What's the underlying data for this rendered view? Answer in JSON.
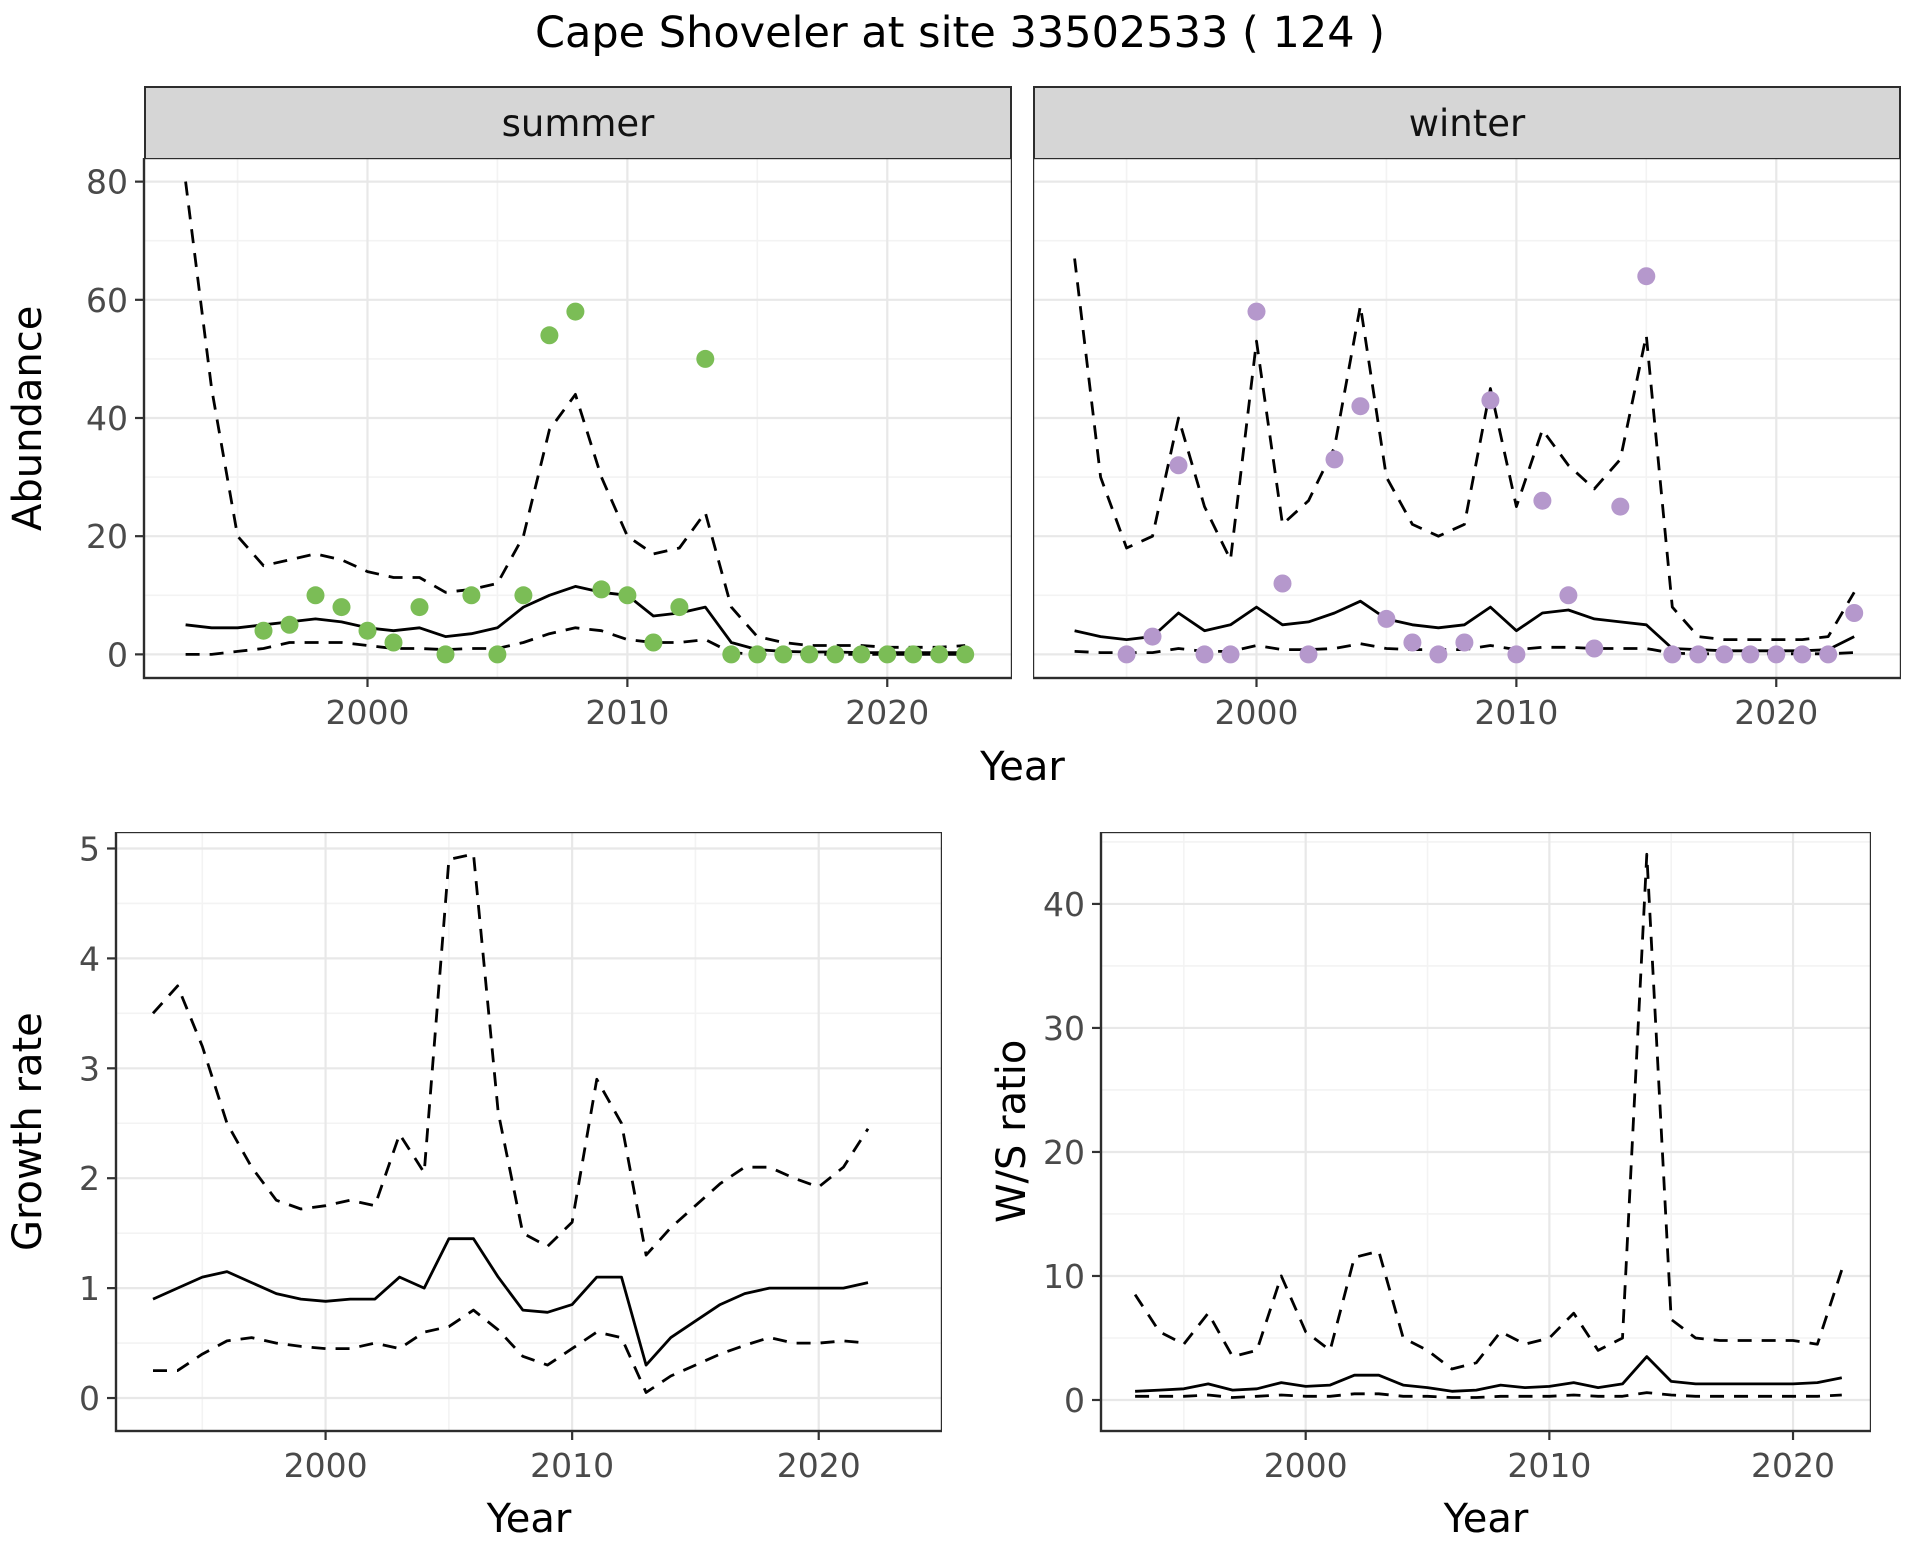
{
  "title": "Cape Shoveler at site 33502533 ( 124 )",
  "colors": {
    "summer_point": "#7bbd56",
    "winter_point": "#b598cc",
    "line": "#000000",
    "strip_bg": "#d6d6d6",
    "panel_border": "#2d2d2d",
    "grid_major": "#e8e8e8",
    "grid_minor": "#f3f3f3",
    "tick_text": "#4a4a4a"
  },
  "chart_data": [
    {
      "id": "abundance_summer",
      "type": "line",
      "facet_label": "summer",
      "xlabel": "Year",
      "ylabel": "Abundance",
      "xlim": [
        1991.4,
        2024.8
      ],
      "ylim": [
        -4,
        84
      ],
      "xticks": [
        2000,
        2010,
        2020
      ],
      "yticks": [
        0,
        20,
        40,
        60,
        80
      ],
      "grid": true,
      "x": [
        1993,
        1994,
        1995,
        1996,
        1997,
        1998,
        1999,
        2000,
        2001,
        2002,
        2003,
        2004,
        2005,
        2006,
        2007,
        2008,
        2009,
        2010,
        2011,
        2012,
        2013,
        2014,
        2015,
        2016,
        2017,
        2018,
        2019,
        2020,
        2021,
        2022,
        2023
      ],
      "series": [
        {
          "name": "fit",
          "style": "solid",
          "y": [
            5,
            4.5,
            4.5,
            5,
            5.5,
            6,
            5.5,
            4.5,
            4,
            4.5,
            3,
            3.5,
            4.5,
            8,
            10,
            11.5,
            10.5,
            10,
            6.5,
            7,
            8,
            2,
            0.8,
            0.5,
            0.4,
            0.4,
            0.3,
            0.3,
            0.3,
            0.3,
            0.3
          ]
        },
        {
          "name": "upper_ci",
          "style": "dashed",
          "y": [
            80,
            45,
            20,
            15,
            16,
            17,
            16,
            14,
            13,
            13,
            10.5,
            11,
            12,
            20,
            38,
            44,
            30,
            20,
            17,
            18,
            24,
            8,
            3,
            2,
            1.5,
            1.5,
            1.5,
            1.2,
            1.2,
            1.2,
            1.5
          ]
        },
        {
          "name": "lower_ci",
          "style": "dashed",
          "y": [
            0,
            0,
            0.5,
            1,
            2,
            2,
            2,
            1.5,
            1,
            1,
            0.8,
            1,
            1,
            2,
            3.5,
            4.5,
            4,
            2.5,
            2,
            2,
            2.5,
            0.3,
            0,
            0,
            0,
            0,
            0,
            0,
            0,
            0,
            0
          ]
        }
      ],
      "points": {
        "name": "observed_counts",
        "color": "#7bbd56",
        "x": [
          1996,
          1997,
          1998,
          1999,
          2000,
          2001,
          2002,
          2003,
          2004,
          2005,
          2006,
          2007,
          2008,
          2009,
          2010,
          2011,
          2012,
          2013,
          2014,
          2015,
          2016,
          2017,
          2018,
          2019,
          2020,
          2021,
          2022,
          2023
        ],
        "y": [
          4,
          5,
          10,
          8,
          4,
          2,
          8,
          0,
          10,
          0,
          10,
          54,
          58,
          11,
          10,
          2,
          8,
          50,
          0,
          0,
          0,
          0,
          0,
          0,
          0,
          0,
          0,
          0
        ]
      }
    },
    {
      "id": "abundance_winter",
      "type": "line",
      "facet_label": "winter",
      "xlabel": "Year",
      "ylabel": "Abundance",
      "xlim": [
        1991.4,
        2024.8
      ],
      "ylim": [
        -4,
        84
      ],
      "xticks": [
        2000,
        2010,
        2020
      ],
      "yticks": [
        0,
        20,
        40,
        60,
        80
      ],
      "grid": true,
      "x": [
        1993,
        1994,
        1995,
        1996,
        1997,
        1998,
        1999,
        2000,
        2001,
        2002,
        2003,
        2004,
        2005,
        2006,
        2007,
        2008,
        2009,
        2010,
        2011,
        2012,
        2013,
        2014,
        2015,
        2016,
        2017,
        2018,
        2019,
        2020,
        2021,
        2022,
        2023
      ],
      "series": [
        {
          "name": "fit",
          "style": "solid",
          "y": [
            4,
            3,
            2.5,
            3,
            7,
            4,
            5,
            8,
            5,
            5.5,
            7,
            9,
            6,
            5,
            4.5,
            5,
            8,
            4,
            7,
            7.5,
            6,
            5.5,
            5,
            1,
            0.8,
            0.6,
            0.6,
            0.6,
            0.6,
            0.8,
            3
          ]
        },
        {
          "name": "upper_ci",
          "style": "dashed",
          "y": [
            67,
            30,
            18,
            20,
            40,
            25,
            16,
            53,
            22,
            26,
            35,
            59,
            30,
            22,
            20,
            22,
            45,
            25,
            38,
            32,
            28,
            33,
            54,
            8,
            3,
            2.5,
            2.5,
            2.5,
            2.5,
            3,
            10.5
          ]
        },
        {
          "name": "lower_ci",
          "style": "dashed",
          "y": [
            0.5,
            0.3,
            0.3,
            0.3,
            1,
            0.5,
            0.5,
            1.5,
            0.8,
            0.8,
            1,
            1.8,
            1,
            0.8,
            0.8,
            0.8,
            1.5,
            0.8,
            1.2,
            1.2,
            1,
            1,
            1,
            0.2,
            0.1,
            0.1,
            0.1,
            0.1,
            0.1,
            0.1,
            0.3
          ]
        }
      ],
      "points": {
        "name": "observed_counts",
        "color": "#b598cc",
        "x": [
          1995,
          1996,
          1997,
          1998,
          1999,
          2000,
          2001,
          2002,
          2003,
          2004,
          2005,
          2006,
          2007,
          2008,
          2009,
          2010,
          2011,
          2012,
          2013,
          2014,
          2015,
          2016,
          2017,
          2018,
          2019,
          2020,
          2021,
          2022,
          2023
        ],
        "y": [
          0,
          3,
          32,
          0,
          0,
          58,
          12,
          0,
          33,
          42,
          6,
          2,
          0,
          2,
          43,
          0,
          26,
          10,
          1,
          25,
          64,
          0,
          0,
          0,
          0,
          0,
          0,
          0,
          7
        ]
      }
    },
    {
      "id": "growth_rate",
      "type": "line",
      "xlabel": "Year",
      "ylabel": "Growth rate",
      "xlim": [
        1991.5,
        2025
      ],
      "ylim": [
        -0.3,
        5.15
      ],
      "xticks": [
        2000,
        2010,
        2020
      ],
      "yticks": [
        0,
        1,
        2,
        3,
        4,
        5
      ],
      "grid": true,
      "x": [
        1993,
        1994,
        1995,
        1996,
        1997,
        1998,
        1999,
        2000,
        2001,
        2002,
        2003,
        2004,
        2005,
        2006,
        2007,
        2008,
        2009,
        2010,
        2011,
        2012,
        2013,
        2014,
        2015,
        2016,
        2017,
        2018,
        2019,
        2020,
        2021,
        2022
      ],
      "series": [
        {
          "name": "fit",
          "style": "solid",
          "y": [
            0.9,
            1.0,
            1.1,
            1.15,
            1.05,
            0.95,
            0.9,
            0.88,
            0.9,
            0.9,
            1.1,
            1.0,
            1.45,
            1.45,
            1.1,
            0.8,
            0.78,
            0.85,
            1.1,
            1.1,
            0.3,
            0.55,
            0.7,
            0.85,
            0.95,
            1.0,
            1.0,
            1.0,
            1.0,
            1.05
          ]
        },
        {
          "name": "upper_ci",
          "style": "dashed",
          "y": [
            3.5,
            3.75,
            3.2,
            2.5,
            2.1,
            1.8,
            1.72,
            1.75,
            1.8,
            1.75,
            2.4,
            2.05,
            4.9,
            4.95,
            2.6,
            1.5,
            1.38,
            1.6,
            2.9,
            2.5,
            1.3,
            1.55,
            1.75,
            1.95,
            2.1,
            2.1,
            2.0,
            1.92,
            2.1,
            2.45
          ]
        },
        {
          "name": "lower_ci",
          "style": "dashed",
          "y": [
            0.25,
            0.25,
            0.4,
            0.52,
            0.55,
            0.5,
            0.47,
            0.45,
            0.45,
            0.5,
            0.45,
            0.6,
            0.65,
            0.8,
            0.62,
            0.38,
            0.3,
            0.45,
            0.6,
            0.55,
            0.05,
            0.2,
            0.3,
            0.4,
            0.48,
            0.55,
            0.5,
            0.5,
            0.52,
            0.5
          ]
        }
      ]
    },
    {
      "id": "ws_ratio",
      "type": "line",
      "xlabel": "Year",
      "ylabel": "W/S ratio",
      "xlim": [
        1991.6,
        2023.2
      ],
      "ylim": [
        -2.5,
        45.8
      ],
      "xticks": [
        2000,
        2010,
        2020
      ],
      "yticks": [
        0,
        10,
        20,
        30,
        40
      ],
      "grid": true,
      "x": [
        1993,
        1994,
        1995,
        1996,
        1997,
        1998,
        1999,
        2000,
        2001,
        2002,
        2003,
        2004,
        2005,
        2006,
        2007,
        2008,
        2009,
        2010,
        2011,
        2012,
        2013,
        2014,
        2015,
        2016,
        2017,
        2018,
        2019,
        2020,
        2021,
        2022
      ],
      "series": [
        {
          "name": "fit",
          "style": "solid",
          "y": [
            0.7,
            0.8,
            0.9,
            1.3,
            0.8,
            0.9,
            1.4,
            1.1,
            1.2,
            2.0,
            2.0,
            1.2,
            1.0,
            0.7,
            0.8,
            1.2,
            1.0,
            1.1,
            1.4,
            1.0,
            1.3,
            3.5,
            1.5,
            1.3,
            1.3,
            1.3,
            1.3,
            1.3,
            1.4,
            1.8
          ]
        },
        {
          "name": "upper_ci",
          "style": "dashed",
          "y": [
            8.5,
            5.5,
            4.5,
            7,
            3.5,
            4,
            10,
            5.5,
            4,
            11.5,
            12,
            5,
            4,
            2.5,
            3,
            5.5,
            4.5,
            5,
            7,
            4,
            5,
            44,
            6.5,
            5,
            4.8,
            4.8,
            4.8,
            4.8,
            4.5,
            10.5
          ]
        },
        {
          "name": "lower_ci",
          "style": "dashed",
          "y": [
            0.3,
            0.3,
            0.3,
            0.4,
            0.2,
            0.3,
            0.4,
            0.3,
            0.3,
            0.5,
            0.5,
            0.3,
            0.3,
            0.2,
            0.2,
            0.3,
            0.3,
            0.3,
            0.4,
            0.3,
            0.3,
            0.6,
            0.4,
            0.3,
            0.3,
            0.3,
            0.3,
            0.3,
            0.3,
            0.4
          ]
        }
      ]
    }
  ]
}
